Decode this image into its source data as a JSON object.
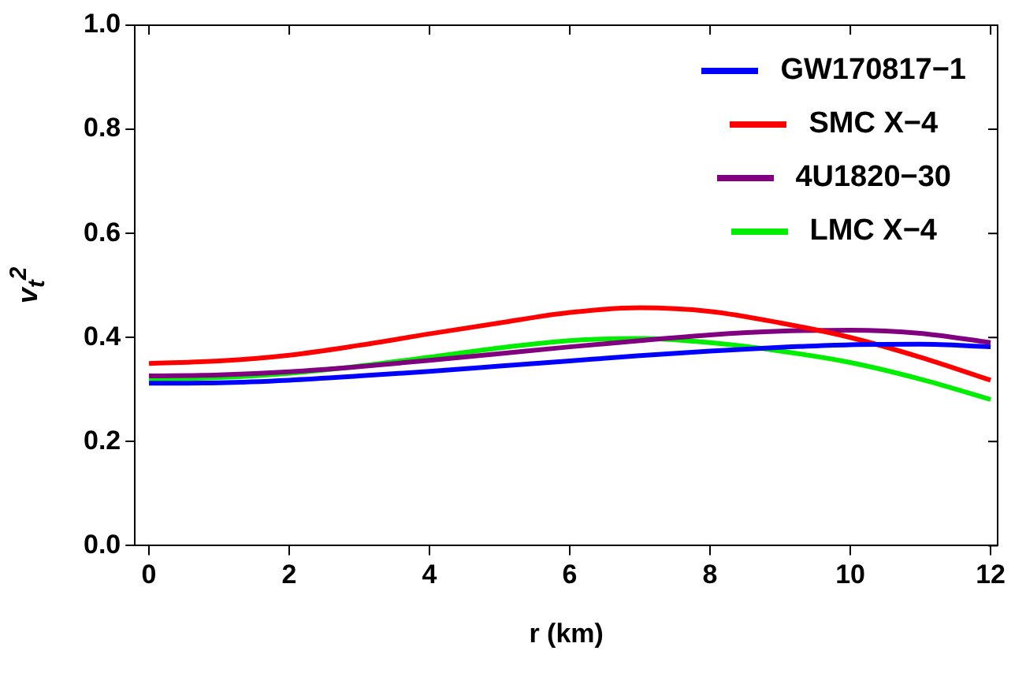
{
  "chart_data": {
    "type": "line",
    "xlabel": "r (km)",
    "ylabel": "v$_{t}$$^{2}$",
    "x": [
      0,
      1,
      2,
      3,
      4,
      5,
      6,
      7,
      8,
      9,
      10,
      11,
      12
    ],
    "xlim": [
      -0.2,
      12.1
    ],
    "xticks": [
      0,
      2,
      4,
      6,
      8,
      10,
      12
    ],
    "ylim": [
      0,
      1
    ],
    "yticks": [
      {
        "value": 0,
        "label": "0.0"
      },
      {
        "value": 0.2,
        "label": "0.2"
      },
      {
        "value": 0.4,
        "label": "0.4"
      },
      {
        "value": 0.6,
        "label": "0.6"
      },
      {
        "value": 0.8,
        "label": "0.8"
      },
      {
        "value": 1,
        "label": "1.0"
      }
    ],
    "series": [
      {
        "name": "GW170817−1",
        "color": "#0000ff",
        "values": [
          0.312,
          0.313,
          0.318,
          0.326,
          0.335,
          0.345,
          0.355,
          0.365,
          0.374,
          0.381,
          0.386,
          0.387,
          0.382
        ]
      },
      {
        "name": "SMC X−4",
        "color": "#ff0000",
        "values": [
          0.35,
          0.355,
          0.366,
          0.385,
          0.407,
          0.428,
          0.448,
          0.457,
          0.45,
          0.428,
          0.4,
          0.362,
          0.318
        ]
      },
      {
        "name": "4U1820−30",
        "color": "#800080",
        "values": [
          0.326,
          0.328,
          0.334,
          0.344,
          0.356,
          0.369,
          0.382,
          0.394,
          0.405,
          0.412,
          0.414,
          0.408,
          0.39
        ]
      },
      {
        "name": "LMC X−4",
        "color": "#00ee00",
        "values": [
          0.32,
          0.323,
          0.331,
          0.345,
          0.362,
          0.38,
          0.394,
          0.398,
          0.39,
          0.374,
          0.352,
          0.32,
          0.281
        ]
      }
    ],
    "grid": false,
    "legend": "top right",
    "marker": "none",
    "line_style": "solid"
  }
}
